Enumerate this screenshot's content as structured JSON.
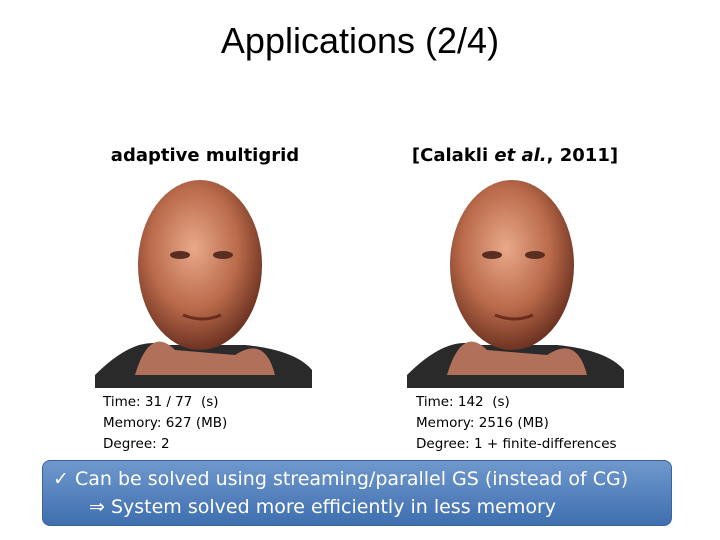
{
  "title": "Applications (2/4)",
  "panels": [
    {
      "heading": [
        "adaptive multigrid"
      ],
      "stats": [
        "Time: 31 / 77  (s)",
        "Memory: 627 (MB)",
        "Degree: 2"
      ]
    },
    {
      "heading": [
        "[Calakli ",
        "et al.",
        ", 2011]"
      ],
      "stats": [
        "Time: 142  (s)",
        "Memory: 2516 (MB)",
        "Degree: 1 + finite-differences"
      ]
    }
  ],
  "callout": [
    {
      "marker": "✓",
      "text": "Can be solved using streaming/parallel GS (instead of CG)"
    },
    {
      "marker": "⇒",
      "text": "System solved more efficiently in less memory"
    }
  ]
}
